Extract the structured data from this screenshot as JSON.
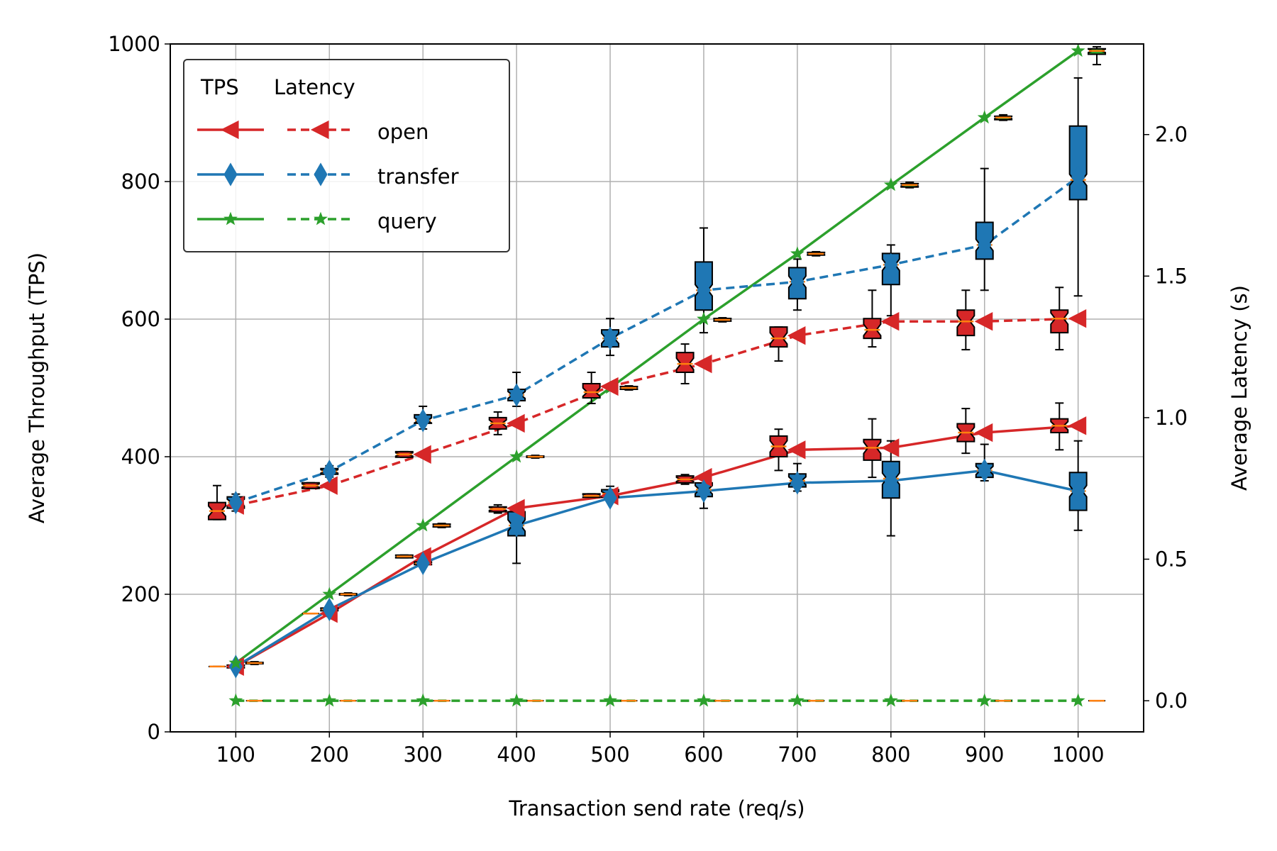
{
  "chart_data": {
    "type": "line",
    "xlabel": "Transaction send rate (req/s)",
    "ylabel": "Average Throughput (TPS)",
    "y2label": "Average Latency (s)",
    "grid": true,
    "legend_placement": "top-left",
    "x_ticks": [
      100,
      200,
      300,
      400,
      500,
      600,
      700,
      800,
      900,
      1000
    ],
    "y_ticks": [
      0,
      200,
      400,
      600,
      800,
      1000
    ],
    "y2_ticks": [
      0.0,
      0.5,
      1.0,
      1.5,
      2.0
    ],
    "y_tick_labels": [
      "0",
      "200",
      "400",
      "600",
      "800",
      "1000"
    ],
    "y2_tick_labels": [
      "0.0",
      "0.5",
      "1.0",
      "1.5",
      "2.0"
    ],
    "x_tick_labels": [
      "100",
      "200",
      "300",
      "400",
      "500",
      "600",
      "700",
      "800",
      "900",
      "1000"
    ],
    "xlim": [
      30,
      1070
    ],
    "ylim": [
      0,
      1000
    ],
    "y2lim": [
      -0.11,
      2.32
    ],
    "legend": {
      "col_headers": [
        "TPS",
        "Latency"
      ],
      "entries": [
        "open",
        "transfer",
        "query"
      ]
    },
    "series": [
      {
        "name": "open",
        "metric": "TPS",
        "axis": "left",
        "color": "#d62728",
        "marker": "triangle-left",
        "dash": "solid",
        "offset": -20,
        "x": [
          100,
          200,
          300,
          400,
          500,
          600,
          700,
          800,
          900,
          1000
        ],
        "y": [
          95,
          172,
          255,
          325,
          343,
          370,
          410,
          413,
          435,
          445
        ],
        "box": [
          [
            95,
            95,
            95,
            95,
            95
          ],
          [
            172,
            172,
            172,
            172,
            172
          ],
          [
            253,
            253,
            255,
            257,
            257
          ],
          [
            318,
            320,
            324,
            327,
            330
          ],
          [
            341,
            341,
            343,
            346,
            346
          ],
          [
            360,
            362,
            367,
            372,
            374
          ],
          [
            380,
            400,
            415,
            430,
            440
          ],
          [
            370,
            395,
            413,
            425,
            455
          ],
          [
            405,
            422,
            435,
            448,
            470
          ],
          [
            410,
            435,
            445,
            455,
            478
          ]
        ]
      },
      {
        "name": "transfer",
        "metric": "TPS",
        "axis": "left",
        "color": "#1f77b4",
        "marker": "diamond",
        "dash": "solid",
        "offset": 0,
        "x": [
          100,
          200,
          300,
          400,
          500,
          600,
          700,
          800,
          900,
          1000
        ],
        "y": [
          95,
          178,
          245,
          300,
          340,
          350,
          362,
          365,
          380,
          350
        ],
        "box": [
          [
            93,
            93,
            95,
            97,
            97
          ],
          [
            176,
            176,
            178,
            180,
            180
          ],
          [
            243,
            243,
            245,
            247,
            247
          ],
          [
            245,
            285,
            300,
            320,
            322
          ],
          [
            335,
            341,
            346,
            352,
            357
          ],
          [
            325,
            342,
            352,
            362,
            370
          ],
          [
            350,
            356,
            365,
            375,
            390
          ],
          [
            285,
            340,
            368,
            393,
            423
          ],
          [
            365,
            370,
            380,
            390,
            418
          ],
          [
            293,
            322,
            350,
            377,
            423
          ]
        ]
      },
      {
        "name": "query",
        "metric": "TPS",
        "axis": "left",
        "color": "#2ca02c",
        "marker": "star",
        "dash": "solid",
        "offset": 20,
        "x": [
          100,
          200,
          300,
          400,
          500,
          600,
          700,
          800,
          900,
          1000
        ],
        "y": [
          100,
          200,
          300,
          400,
          500,
          600,
          695,
          795,
          893,
          990
        ],
        "box": [
          [
            98,
            99,
            100,
            101,
            102
          ],
          [
            198,
            199,
            200,
            201,
            202
          ],
          [
            297,
            298,
            300,
            302,
            303
          ],
          [
            398,
            399,
            400,
            401,
            402
          ],
          [
            497,
            498,
            500,
            502,
            503
          ],
          [
            596,
            597,
            599,
            601,
            602
          ],
          [
            692,
            693,
            695,
            697,
            698
          ],
          [
            791,
            792,
            795,
            797,
            799
          ],
          [
            889,
            890,
            893,
            895,
            897
          ],
          [
            970,
            985,
            990,
            993,
            996
          ]
        ]
      },
      {
        "name": "open",
        "metric": "Latency",
        "axis": "right",
        "color": "#d62728",
        "marker": "triangle-left",
        "dash": "dashed",
        "offset": -20,
        "x": [
          100,
          200,
          300,
          400,
          500,
          600,
          700,
          800,
          900,
          1000
        ],
        "y": [
          0.69,
          0.76,
          0.87,
          0.98,
          1.11,
          1.19,
          1.29,
          1.34,
          1.34,
          1.35
        ],
        "box": [
          [
            0.64,
            0.64,
            0.67,
            0.7,
            0.76
          ],
          [
            0.75,
            0.75,
            0.76,
            0.77,
            0.77
          ],
          [
            0.86,
            0.86,
            0.87,
            0.88,
            0.88
          ],
          [
            0.94,
            0.96,
            0.98,
            1.0,
            1.02
          ],
          [
            1.05,
            1.07,
            1.09,
            1.12,
            1.16
          ],
          [
            1.12,
            1.16,
            1.19,
            1.23,
            1.26
          ],
          [
            1.2,
            1.25,
            1.28,
            1.32,
            1.32
          ],
          [
            1.25,
            1.28,
            1.31,
            1.35,
            1.45
          ],
          [
            1.24,
            1.29,
            1.34,
            1.38,
            1.45
          ],
          [
            1.24,
            1.3,
            1.35,
            1.38,
            1.46
          ]
        ]
      },
      {
        "name": "transfer",
        "metric": "Latency",
        "axis": "right",
        "color": "#1f77b4",
        "marker": "diamond",
        "dash": "dashed",
        "offset": 0,
        "x": [
          100,
          200,
          300,
          400,
          500,
          600,
          700,
          800,
          900,
          1000
        ],
        "y": [
          0.7,
          0.81,
          0.99,
          1.08,
          1.28,
          1.45,
          1.48,
          1.54,
          1.61,
          1.85
        ],
        "box": [
          [
            0.67,
            0.68,
            0.7,
            0.72,
            0.73
          ],
          [
            0.79,
            0.8,
            0.81,
            0.82,
            0.83
          ],
          [
            0.96,
            0.98,
            0.99,
            1.01,
            1.04
          ],
          [
            1.04,
            1.06,
            1.08,
            1.1,
            1.16
          ],
          [
            1.22,
            1.25,
            1.28,
            1.31,
            1.35
          ],
          [
            1.3,
            1.38,
            1.45,
            1.55,
            1.67
          ],
          [
            1.38,
            1.42,
            1.48,
            1.53,
            1.56
          ],
          [
            1.36,
            1.47,
            1.54,
            1.58,
            1.61
          ],
          [
            1.45,
            1.56,
            1.61,
            1.69,
            1.88
          ],
          [
            1.43,
            1.77,
            1.84,
            2.03,
            2.2
          ]
        ]
      },
      {
        "name": "query",
        "metric": "Latency",
        "axis": "right",
        "color": "#2ca02c",
        "marker": "star",
        "dash": "dashed",
        "offset": 20,
        "x": [
          100,
          200,
          300,
          400,
          500,
          600,
          700,
          800,
          900,
          1000
        ],
        "y": [
          0.0,
          0.0,
          0.0,
          0.0,
          0.0,
          0.0,
          0.0,
          0.0,
          0.0,
          0.0
        ],
        "box": [
          [
            0,
            0,
            0,
            0,
            0
          ],
          [
            0,
            0,
            0,
            0,
            0
          ],
          [
            0,
            0,
            0,
            0,
            0
          ],
          [
            0,
            0,
            0,
            0,
            0
          ],
          [
            0,
            0,
            0,
            0,
            0
          ],
          [
            0,
            0,
            0,
            0,
            0
          ],
          [
            0,
            0,
            0,
            0,
            0
          ],
          [
            0,
            0,
            0,
            0,
            0
          ],
          [
            0,
            0,
            0,
            0,
            0
          ],
          [
            0,
            0,
            0,
            0,
            0
          ]
        ]
      }
    ]
  }
}
